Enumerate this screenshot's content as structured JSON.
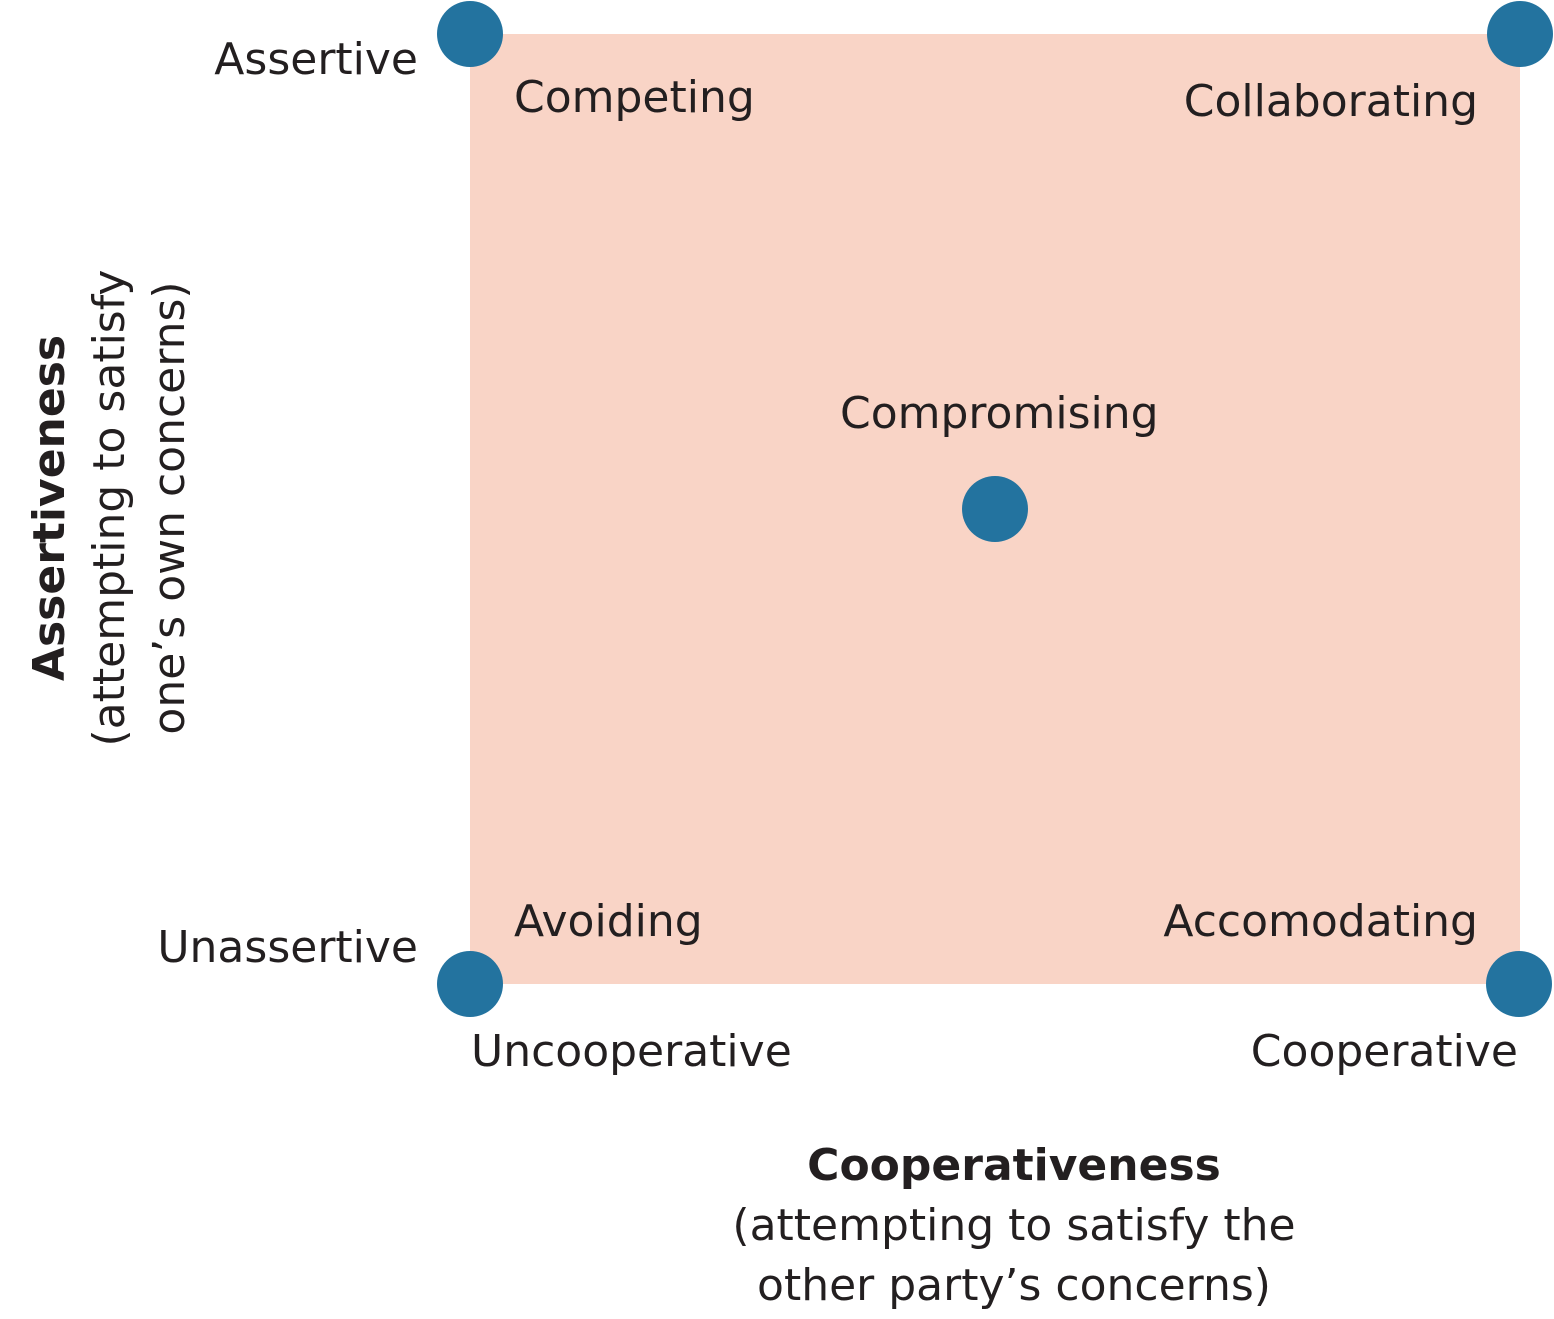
{
  "colors": {
    "quadrant_fill": "#f9d4c6",
    "dot": "#23739f",
    "text": "#231f20"
  },
  "y_axis": {
    "title": "Assertiveness",
    "subtitle_line1": "(attempting to satisfy",
    "subtitle_line2": "one’s own concerns)",
    "high_label": "Assertive",
    "low_label": "Unassertive"
  },
  "x_axis": {
    "title": "Cooperativeness",
    "subtitle_line1": "(attempting to satisfy the",
    "subtitle_line2": "other party’s concerns)",
    "low_label": "Uncooperative",
    "high_label": "Cooperative"
  },
  "styles": {
    "competing": "Competing",
    "collaborating": "Collaborating",
    "compromising": "Compromising",
    "avoiding": "Avoiding",
    "accommodating": "Accomodating"
  }
}
